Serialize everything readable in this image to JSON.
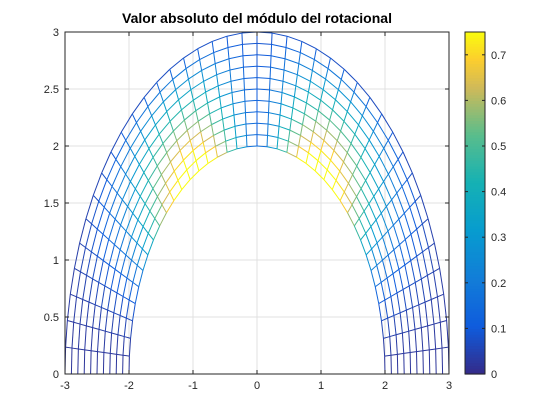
{
  "chart_data": {
    "type": "mesh",
    "title": "Valor absoluto del módulo del rotacional",
    "xlabel": "",
    "ylabel": "",
    "xlim": [
      -3,
      3
    ],
    "ylim": [
      0,
      3
    ],
    "x_ticks": [
      "-3",
      "-2",
      "-1",
      "0",
      "1",
      "2",
      "3"
    ],
    "y_ticks": [
      "0",
      "0.5",
      "1",
      "1.5",
      "2",
      "2.5",
      "3"
    ],
    "grid": true,
    "mesh": {
      "description_of_domain": "half-annulus between inner half-ellipse (a=2,b=2) and outer half-ellipse (a=3,b=3)",
      "inner_semi_axes": [
        2,
        2
      ],
      "outer_semi_axes": [
        3,
        3
      ],
      "radial_lines": 11,
      "angular_lines": 41
    },
    "colorbar": {
      "range": [
        0,
        0.75
      ],
      "tick_labels": [
        "0",
        "0.1",
        "0.2",
        "0.3",
        "0.4",
        "0.5",
        "0.6",
        "0.7"
      ],
      "colormap": "parula",
      "location": "right"
    },
    "colors": {
      "axes": "#262626",
      "grid": "#e0e0e0"
    }
  }
}
